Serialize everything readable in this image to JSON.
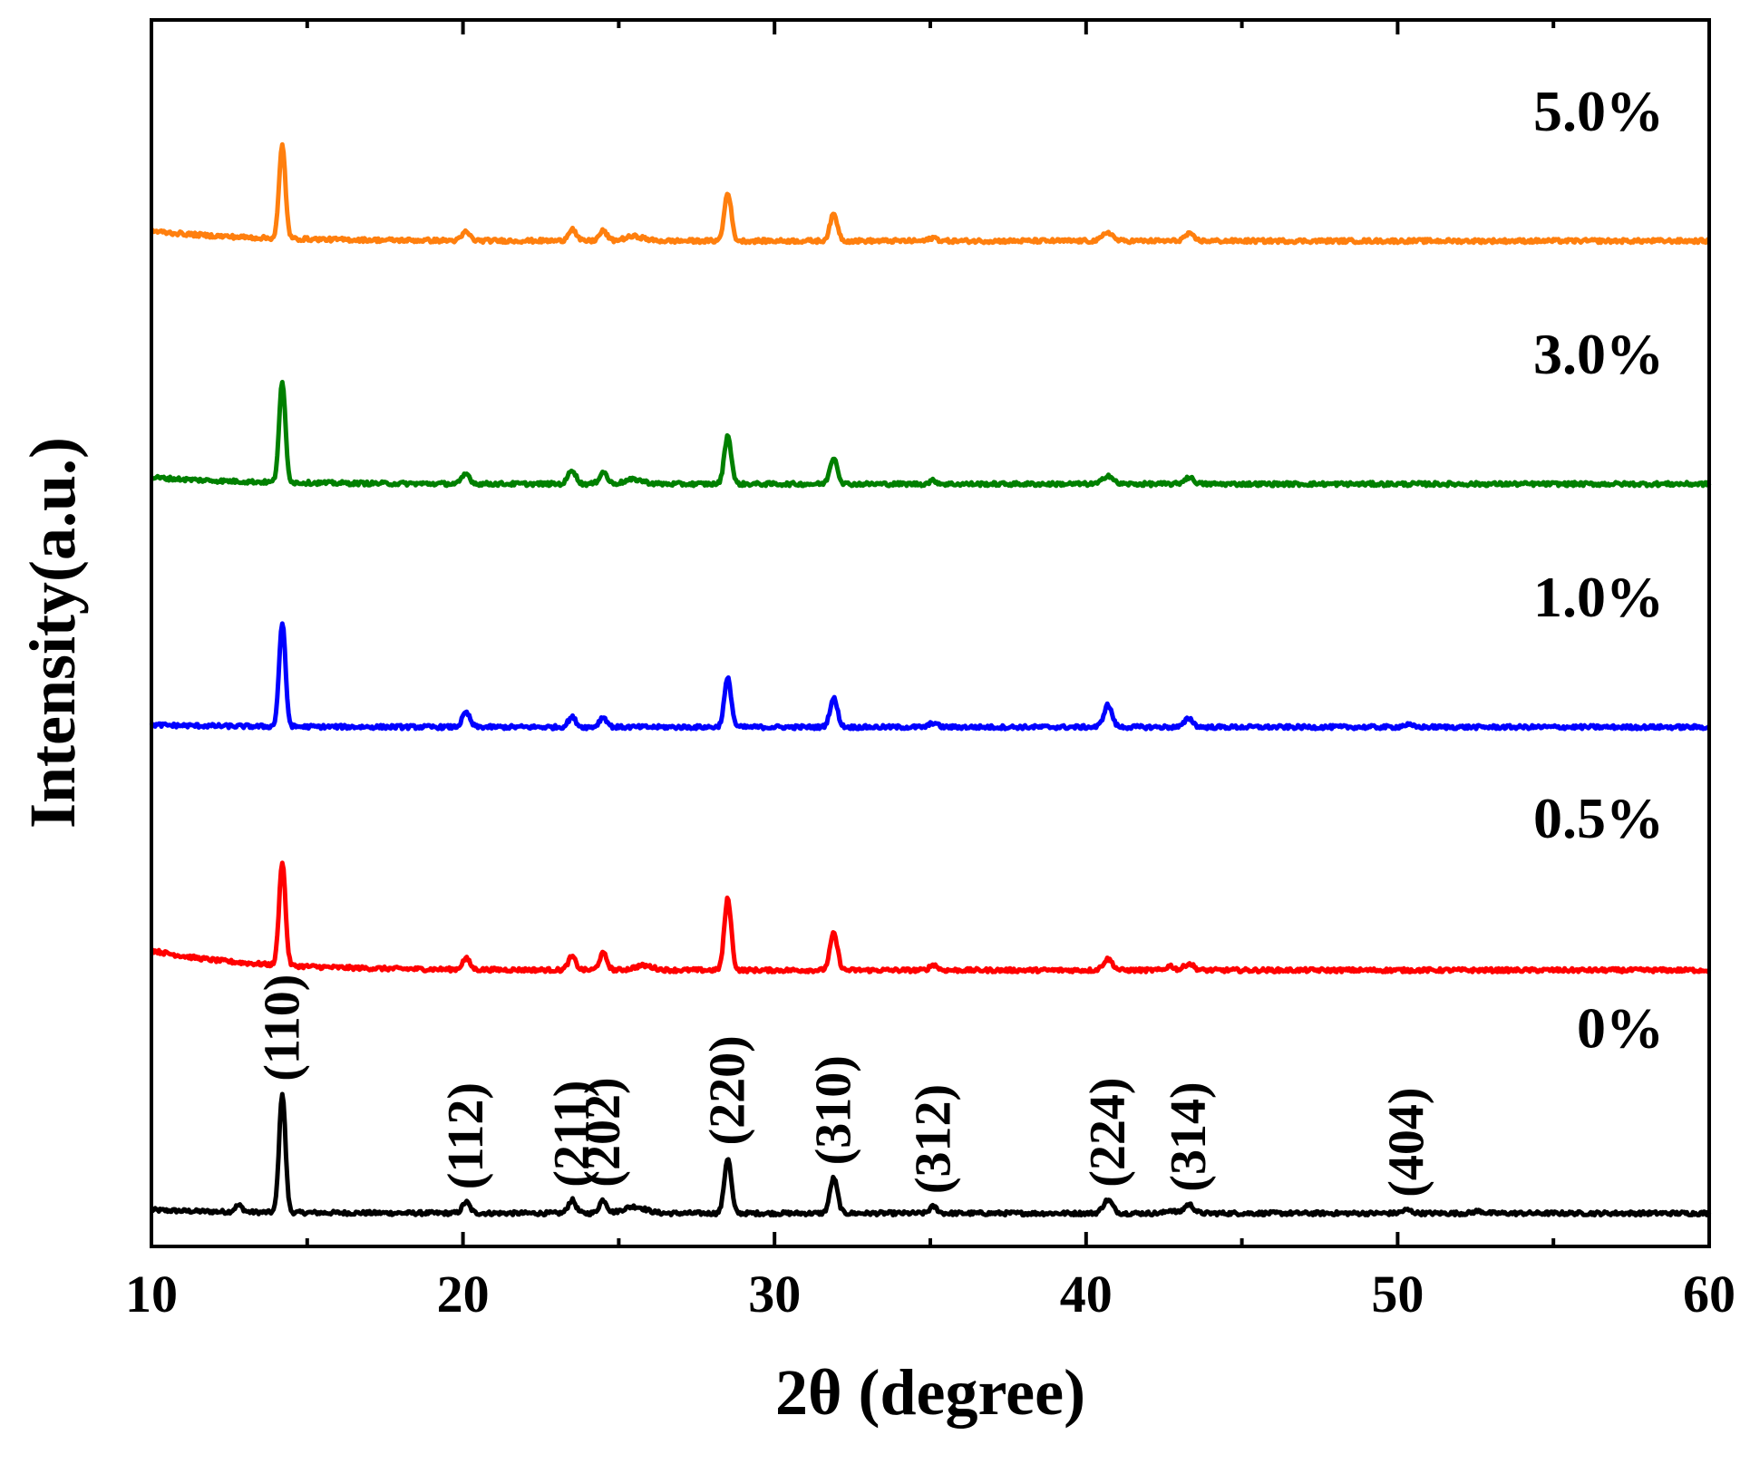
{
  "chart_data": {
    "type": "line",
    "title": "",
    "xlabel": "2θ (degree)",
    "ylabel": "Intensity(a.u.)",
    "xlim": [
      10,
      60
    ],
    "x_ticks": [
      10,
      20,
      30,
      40,
      50,
      60
    ],
    "x_tick_labels": [
      "10",
      "20",
      "30",
      "40",
      "50",
      "60"
    ],
    "y_ticks_shown": false,
    "grid": false,
    "legend": "inline labels at right",
    "series": [
      {
        "name": "0%",
        "color": "#000000",
        "baseline": 0,
        "start_hump": 0.3,
        "peaks": [
          [
            12.8,
            0.6,
            0.12
          ],
          [
            14.2,
            10.8,
            0.1
          ],
          [
            20.1,
            1.0,
            0.12
          ],
          [
            23.5,
            1.2,
            0.12
          ],
          [
            24.5,
            1.2,
            0.12
          ],
          [
            25.5,
            0.6,
            0.35
          ],
          [
            28.5,
            5.0,
            0.11
          ],
          [
            31.9,
            3.2,
            0.12
          ],
          [
            35.1,
            0.6,
            0.12
          ],
          [
            40.7,
            1.2,
            0.15
          ],
          [
            42.7,
            0.3,
            0.12
          ],
          [
            43.3,
            0.8,
            0.15
          ],
          [
            50.3,
            0.3,
            0.15
          ],
          [
            52.6,
            0.2,
            0.15
          ]
        ]
      },
      {
        "name": "0.5%",
        "color": "#ff0000",
        "baseline": 22,
        "start_hump": 1.8,
        "peaks": [
          [
            14.2,
            9.4,
            0.1
          ],
          [
            20.1,
            1.0,
            0.12
          ],
          [
            23.5,
            1.2,
            0.12
          ],
          [
            24.5,
            1.5,
            0.12
          ],
          [
            25.8,
            0.4,
            0.3
          ],
          [
            28.5,
            6.5,
            0.11
          ],
          [
            31.9,
            3.3,
            0.12
          ],
          [
            35.1,
            0.5,
            0.12
          ],
          [
            40.7,
            1.0,
            0.15
          ],
          [
            42.7,
            0.4,
            0.12
          ],
          [
            43.3,
            0.6,
            0.15
          ]
        ]
      },
      {
        "name": "1.0%",
        "color": "#0000ff",
        "baseline": 44,
        "start_hump": 0.2,
        "peaks": [
          [
            14.2,
            9.4,
            0.1
          ],
          [
            20.1,
            1.3,
            0.12
          ],
          [
            23.5,
            0.9,
            0.12
          ],
          [
            24.5,
            0.9,
            0.12
          ],
          [
            28.5,
            4.4,
            0.11
          ],
          [
            31.9,
            2.6,
            0.12
          ],
          [
            35.1,
            0.4,
            0.12
          ],
          [
            40.7,
            2.0,
            0.13
          ],
          [
            43.3,
            0.8,
            0.13
          ],
          [
            50.3,
            0.2,
            0.15
          ]
        ]
      },
      {
        "name": "3.0%",
        "color": "#008000",
        "baseline": 66,
        "start_hump": 0.6,
        "peaks": [
          [
            14.2,
            9.0,
            0.1
          ],
          [
            20.1,
            0.9,
            0.12
          ],
          [
            23.5,
            1.3,
            0.12
          ],
          [
            24.5,
            1.1,
            0.12
          ],
          [
            25.5,
            0.4,
            0.3
          ],
          [
            28.5,
            4.4,
            0.11
          ],
          [
            31.9,
            2.4,
            0.12
          ],
          [
            35.1,
            0.3,
            0.12
          ],
          [
            40.7,
            0.8,
            0.15
          ],
          [
            43.3,
            0.6,
            0.15
          ]
        ]
      },
      {
        "name": "5.0%",
        "color": "#ff7f0e",
        "baseline": 88,
        "start_hump": 0.9,
        "peaks": [
          [
            14.2,
            8.4,
            0.1
          ],
          [
            20.1,
            0.8,
            0.12
          ],
          [
            23.5,
            1.1,
            0.12
          ],
          [
            24.5,
            0.9,
            0.12
          ],
          [
            25.5,
            0.4,
            0.3
          ],
          [
            28.5,
            4.4,
            0.11
          ],
          [
            31.9,
            2.4,
            0.12
          ],
          [
            35.1,
            0.3,
            0.12
          ],
          [
            40.7,
            0.8,
            0.15
          ],
          [
            43.3,
            0.6,
            0.15
          ]
        ]
      }
    ],
    "annotations": [
      {
        "text": "(110)",
        "x": 14.2
      },
      {
        "text": "(112)",
        "x": 20.1
      },
      {
        "text": "(211)",
        "x": 23.5
      },
      {
        "text": "(202)",
        "x": 24.5
      },
      {
        "text": "(220)",
        "x": 28.5
      },
      {
        "text": "(310)",
        "x": 31.9
      },
      {
        "text": "(312)",
        "x": 35.1
      },
      {
        "text": "(224)",
        "x": 40.7
      },
      {
        "text": "(314)",
        "x": 43.3
      },
      {
        "text": "(404)",
        "x": 50.3
      }
    ]
  }
}
